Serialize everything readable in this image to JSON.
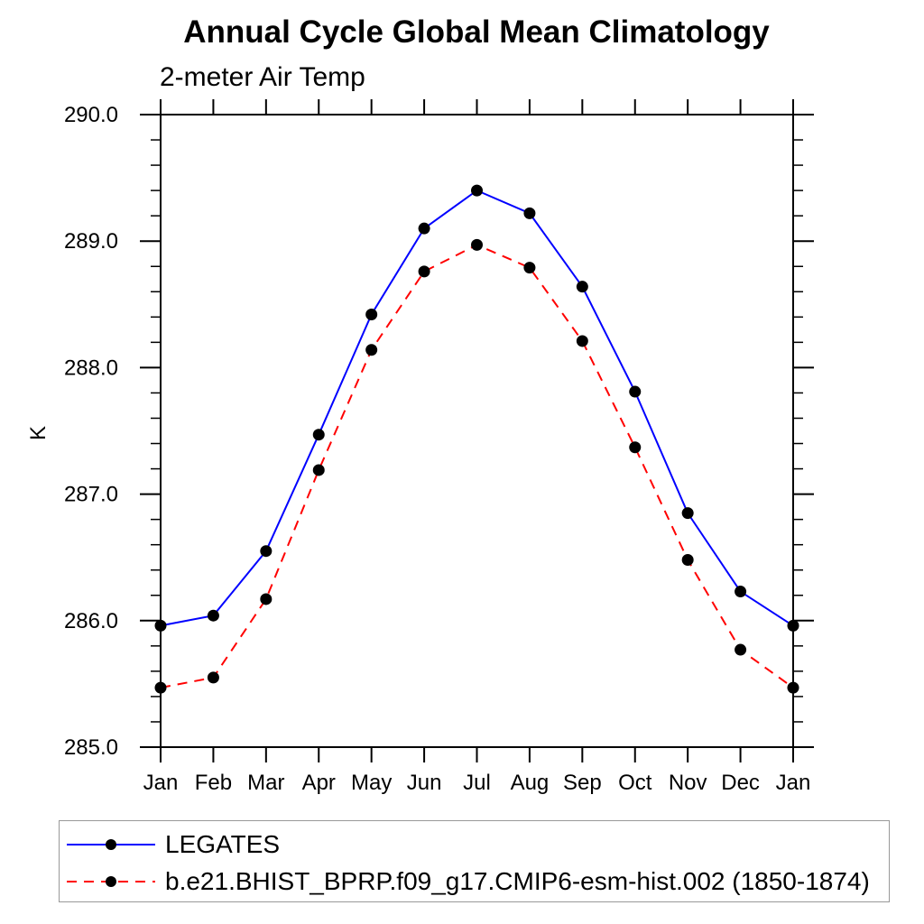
{
  "chart_data": {
    "type": "line",
    "title": "Annual Cycle Global Mean Climatology",
    "subtitle": "2-meter Air Temp",
    "ylabel": "K",
    "x_categories": [
      "Jan",
      "Feb",
      "Mar",
      "Apr",
      "May",
      "Jun",
      "Jul",
      "Aug",
      "Sep",
      "Oct",
      "Nov",
      "Dec",
      "Jan"
    ],
    "ylim": [
      285.0,
      290.0
    ],
    "y_tick_labels": [
      "285.0",
      "286.0",
      "287.0",
      "288.0",
      "289.0",
      "290.0"
    ],
    "y_major_ticks": [
      285.0,
      286.0,
      287.0,
      288.0,
      289.0,
      290.0
    ],
    "y_minor_step": 0.2,
    "grid": false,
    "legend_position": "bottom-left",
    "axis_color": "#000000",
    "marker_color": "#000000",
    "series": [
      {
        "name": "LEGATES",
        "color": "#0000ff",
        "style": "solid",
        "marker": "filled-circle",
        "values": [
          285.96,
          286.04,
          286.55,
          287.47,
          288.42,
          289.1,
          289.4,
          289.22,
          288.64,
          287.81,
          286.85,
          286.23,
          285.96
        ]
      },
      {
        "name": "b.e21.BHIST_BPRP.f09_g17.CMIP6-esm-hist.002 (1850-1874)",
        "color": "#ff0000",
        "style": "dashed",
        "marker": "filled-circle",
        "values": [
          285.47,
          285.55,
          286.17,
          287.19,
          288.14,
          288.76,
          288.97,
          288.79,
          288.21,
          287.37,
          286.48,
          285.77,
          285.47
        ]
      }
    ]
  }
}
